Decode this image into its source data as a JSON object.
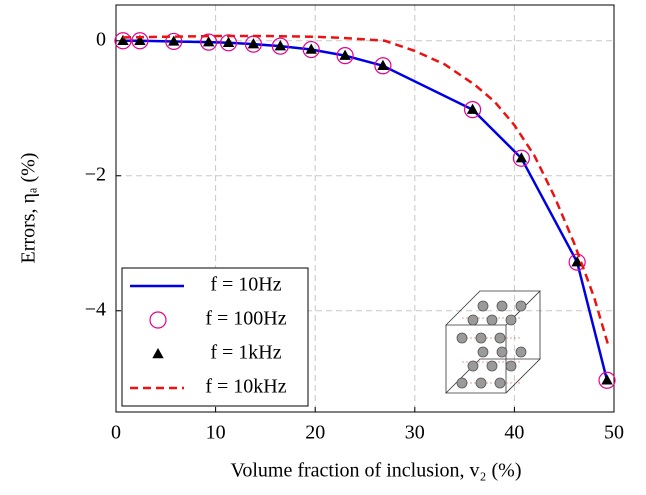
{
  "chart_data": {
    "type": "line",
    "xlabel": "Volume fraction of inclusion, v₂ (%)",
    "ylabel": "Errors, ηₐ (%)",
    "xlim": [
      0,
      50
    ],
    "ylim": [
      -5.5,
      0.53
    ],
    "xticks": [
      0,
      10,
      20,
      30,
      40,
      50
    ],
    "yticks": [
      {
        "value": 0,
        "label": "0"
      },
      {
        "value": -2,
        "label": "−2"
      },
      {
        "value": -4,
        "label": "−4"
      }
    ],
    "grid": true,
    "legend": "lower left",
    "series": [
      {
        "name": "f = 10Hz",
        "color": "#0000e6",
        "style": "line",
        "x": [
          0.7,
          2.4,
          5.8,
          9.3,
          11.3,
          13.8,
          16.5,
          19.6,
          23.0,
          26.8,
          35.8,
          40.7,
          46.3,
          49.3
        ],
        "values": [
          0,
          0,
          -0.01,
          -0.02,
          -0.03,
          -0.05,
          -0.08,
          -0.13,
          -0.22,
          -0.37,
          -1.02,
          -1.74,
          -3.28,
          -5.03
        ]
      },
      {
        "name": "f = 100Hz",
        "color": "#e6008c",
        "style": "circle",
        "x": [
          0.7,
          2.4,
          5.8,
          9.3,
          11.3,
          13.8,
          16.5,
          19.6,
          23.0,
          26.8,
          35.8,
          40.7,
          46.3,
          49.3
        ],
        "values": [
          0,
          0,
          -0.01,
          -0.02,
          -0.03,
          -0.05,
          -0.08,
          -0.13,
          -0.22,
          -0.37,
          -1.02,
          -1.74,
          -3.28,
          -5.03
        ]
      },
      {
        "name": "f = 1kHz",
        "color": "#000000",
        "style": "triangle",
        "x": [
          0.7,
          2.4,
          5.8,
          9.3,
          11.3,
          13.8,
          16.5,
          19.6,
          23.0,
          26.8,
          35.8,
          40.7,
          46.3,
          49.3
        ],
        "values": [
          0,
          0,
          -0.01,
          -0.02,
          -0.03,
          -0.05,
          -0.08,
          -0.13,
          -0.22,
          -0.37,
          -1.02,
          -1.74,
          -3.28,
          -5.03
        ]
      },
      {
        "name": "f = 10kHz",
        "color": "#ee1111",
        "style": "dashed",
        "x": [
          0.7,
          5,
          10,
          15,
          20,
          23,
          25,
          27,
          30,
          33,
          36,
          38,
          40,
          42,
          44,
          46,
          48,
          49.5
        ],
        "values": [
          0.05,
          0.06,
          0.07,
          0.07,
          0.06,
          0.04,
          0.02,
          0,
          -0.15,
          -0.35,
          -0.65,
          -0.9,
          -1.25,
          -1.7,
          -2.3,
          -3.0,
          -3.8,
          -4.55
        ]
      }
    ]
  }
}
